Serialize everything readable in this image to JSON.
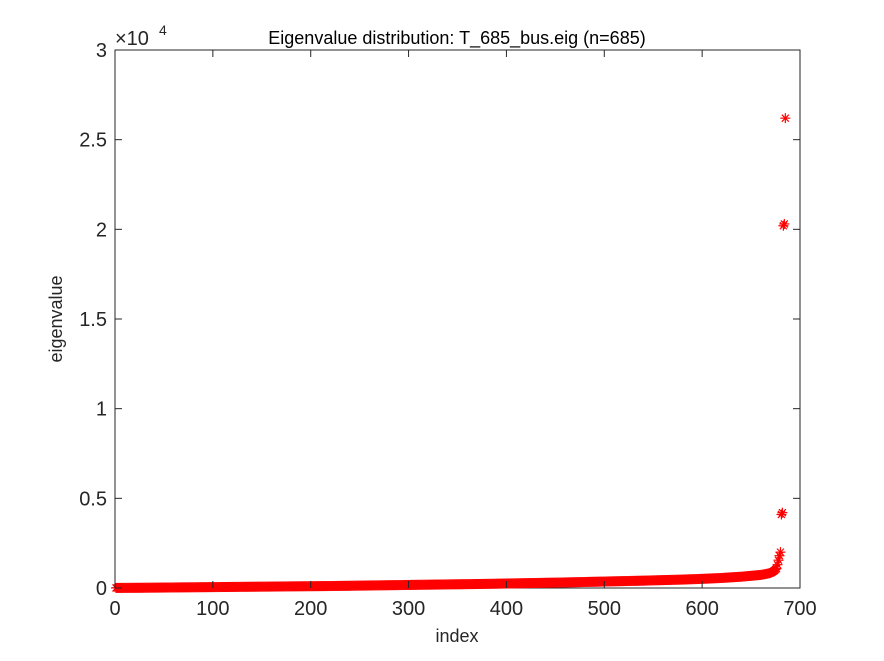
{
  "chart_data": {
    "type": "scatter",
    "title": "Eigenvalue distribution: T_685_bus.eig (n=685)",
    "xlabel": "index",
    "ylabel": "eigenvalue",
    "xlim": [
      0,
      700
    ],
    "ylim": [
      0,
      30000
    ],
    "xticks": [
      0,
      100,
      200,
      300,
      400,
      500,
      600,
      700
    ],
    "xtick_labels": [
      "0",
      "100",
      "200",
      "300",
      "400",
      "500",
      "600",
      "700"
    ],
    "yticks": [
      0,
      5000,
      10000,
      15000,
      20000,
      25000,
      30000
    ],
    "ytick_labels": [
      "0",
      "0.5",
      "1",
      "1.5",
      "2",
      "2.5",
      "3"
    ],
    "y_exponent_base": "×10",
    "y_exponent": "4",
    "marker": "*",
    "marker_color": "#ff0000",
    "grid": false,
    "n": 685,
    "x": [
      1,
      20,
      40,
      60,
      80,
      100,
      120,
      140,
      160,
      180,
      200,
      220,
      240,
      260,
      280,
      300,
      320,
      340,
      360,
      380,
      400,
      420,
      440,
      460,
      480,
      500,
      520,
      540,
      560,
      580,
      600,
      620,
      640,
      650,
      660,
      665,
      670,
      672,
      674,
      676,
      677,
      678,
      679,
      680,
      681,
      682,
      683,
      684,
      685
    ],
    "y": [
      5,
      10,
      20,
      30,
      40,
      50,
      60,
      70,
      80,
      90,
      100,
      110,
      125,
      140,
      155,
      170,
      185,
      200,
      215,
      230,
      250,
      270,
      290,
      310,
      335,
      360,
      385,
      410,
      440,
      470,
      510,
      560,
      630,
      680,
      730,
      780,
      840,
      900,
      980,
      1080,
      1300,
      1550,
      1800,
      2000,
      4100,
      4200,
      20200,
      20300,
      26200
    ]
  }
}
